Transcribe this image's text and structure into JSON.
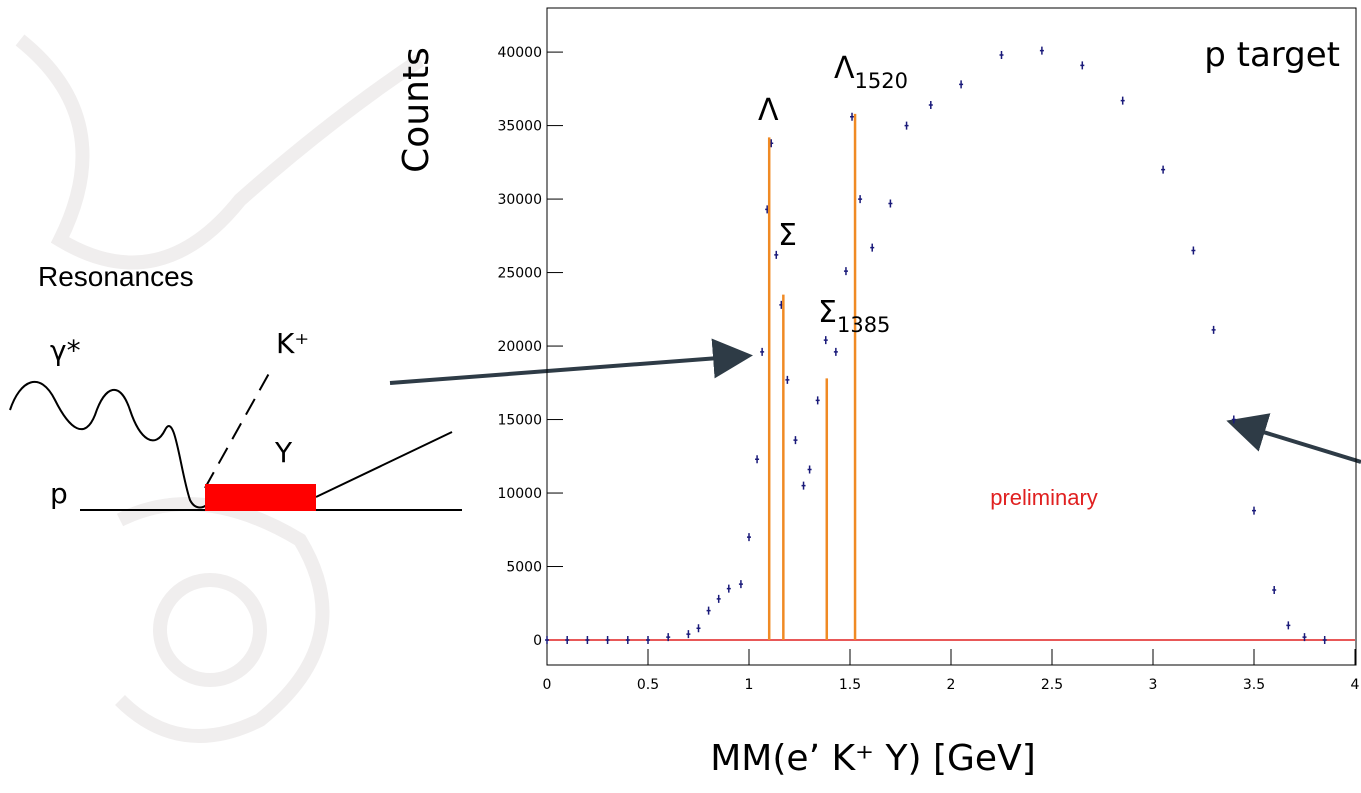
{
  "chart_data": {
    "type": "scatter",
    "y_label": "Counts",
    "x_label": "MM(e’ K⁺ Y) [GeV]",
    "x": [
      0,
      0.1,
      0.2,
      0.3,
      0.4,
      0.5,
      0.6,
      0.7,
      0.75,
      0.8,
      0.85,
      0.9,
      0.96,
      1.0,
      1.04,
      1.065,
      1.09,
      1.11,
      1.135,
      1.16,
      1.19,
      1.23,
      1.27,
      1.3,
      1.34,
      1.38,
      1.43,
      1.48,
      1.51,
      1.55,
      1.61,
      1.7,
      1.78,
      1.9,
      2.05,
      2.25,
      2.45,
      2.65,
      2.85,
      3.05,
      3.2,
      3.3,
      3.4,
      3.5,
      3.6,
      3.67,
      3.75,
      3.85
    ],
    "values": [
      0,
      0,
      0,
      0,
      0,
      0,
      200,
      400,
      800,
      2000,
      2800,
      3500,
      3800,
      7000,
      12300,
      19600,
      29300,
      33800,
      26200,
      22800,
      17700,
      13600,
      10500,
      11600,
      16300,
      20400,
      19600,
      25100,
      35600,
      30000,
      26700,
      29700,
      35000,
      36400,
      37800,
      39800,
      40100,
      39100,
      36700,
      32000,
      26500,
      21100,
      15000,
      8800,
      3400,
      1000,
      200,
      0
    ],
    "color": "#1a1a7a",
    "xlim": [
      0,
      4
    ],
    "ylim": [
      -1700,
      43000
    ],
    "xticks": [
      0,
      0.5,
      1,
      1.5,
      2,
      2.5,
      3,
      3.5,
      4
    ],
    "yticks": [
      0,
      5000,
      10000,
      15000,
      20000,
      25000,
      30000,
      35000,
      40000
    ],
    "reference_line": {
      "value": 0,
      "color": "#e02020"
    },
    "markers": {
      "color": "#f08a24",
      "x": [
        1.1,
        1.17,
        1.385,
        1.525
      ],
      "values": [
        34200,
        23500,
        17800,
        35800
      ]
    },
    "annotations": [
      {
        "text": "Λ"
      },
      {
        "text": "Σ"
      },
      {
        "text": "Σ",
        "sub": "1385"
      },
      {
        "text": "Λ",
        "sub": "1520"
      }
    ],
    "target_label": "p target",
    "watermark": "preliminary"
  },
  "diagram": {
    "title": "Resonances",
    "photon": "γ*",
    "kaon": "K⁺",
    "hyperon": "Y",
    "proton": "p"
  }
}
